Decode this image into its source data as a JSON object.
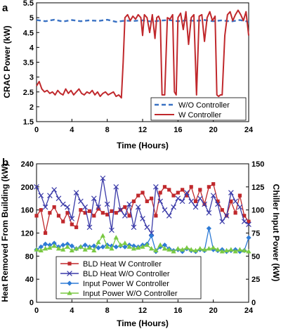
{
  "chart_data": [
    {
      "type": "line",
      "panel": "a",
      "xlabel": "Time (Hours)",
      "ylabel": "CRAC Power (kW)",
      "xlim": [
        0,
        24
      ],
      "ylim": [
        1.5,
        5.5
      ],
      "xticks": [
        0,
        4,
        8,
        12,
        16,
        20,
        24
      ],
      "yticks": [
        1.5,
        2,
        2.5,
        3,
        3.5,
        4,
        4.5,
        5,
        5.5
      ],
      "grid": false,
      "legend_position": "lower-right",
      "series": [
        {
          "name": "W/O Controller",
          "color": "#3a72c4",
          "style": "dashed",
          "x": [
            0,
            1,
            2,
            3,
            4,
            5,
            6,
            7,
            8,
            9,
            10,
            11,
            12,
            13,
            14,
            15,
            16,
            17,
            18,
            19,
            20,
            21,
            22,
            23,
            24
          ],
          "y": [
            4.92,
            4.88,
            4.93,
            4.87,
            4.92,
            4.88,
            4.91,
            4.89,
            4.93,
            4.86,
            4.9,
            4.89,
            4.91,
            4.87,
            4.9,
            4.92,
            4.88,
            4.91,
            4.89,
            4.92,
            4.88,
            4.91,
            4.87,
            4.92,
            4.86
          ]
        },
        {
          "name": "W Controller",
          "color": "#c0282c",
          "style": "solid",
          "x": [
            0,
            0.3,
            0.6,
            0.9,
            1.2,
            1.5,
            1.8,
            2.1,
            2.4,
            2.7,
            3.0,
            3.3,
            3.6,
            3.9,
            4.2,
            4.5,
            4.8,
            5.1,
            5.4,
            5.7,
            6.0,
            6.3,
            6.6,
            6.9,
            7.2,
            7.5,
            7.8,
            8.1,
            8.4,
            8.7,
            9.0,
            9.3,
            9.6,
            9.8,
            10.0,
            10.3,
            10.6,
            10.9,
            11.2,
            11.5,
            11.8,
            12.0,
            12.2,
            12.5,
            12.8,
            13.1,
            13.4,
            13.6,
            13.8,
            14.0,
            14.2,
            14.5,
            14.8,
            15.1,
            15.4,
            15.6,
            15.8,
            16.0,
            16.3,
            16.6,
            16.9,
            17.2,
            17.5,
            17.8,
            18.1,
            18.4,
            18.7,
            19.0,
            19.3,
            19.6,
            19.9,
            20.2,
            20.4,
            20.6,
            20.8,
            21.0,
            21.3,
            21.6,
            21.9,
            22.2,
            22.5,
            22.8,
            23.1,
            23.4,
            23.7,
            24.0
          ],
          "y": [
            2.7,
            2.85,
            2.6,
            2.5,
            2.55,
            2.45,
            2.5,
            2.4,
            2.55,
            2.45,
            2.4,
            2.6,
            2.45,
            2.55,
            2.4,
            2.5,
            2.6,
            2.45,
            2.4,
            2.5,
            2.45,
            2.55,
            2.4,
            2.5,
            2.35,
            2.45,
            2.5,
            2.4,
            2.45,
            2.5,
            2.35,
            2.4,
            2.3,
            3.5,
            5.0,
            5.1,
            4.9,
            5.05,
            4.95,
            5.1,
            5.0,
            4.4,
            5.1,
            5.0,
            4.5,
            5.1,
            4.3,
            5.0,
            5.05,
            4.9,
            2.4,
            2.4,
            5.0,
            4.95,
            5.1,
            2.5,
            2.4,
            5.0,
            5.15,
            4.6,
            5.2,
            4.1,
            5.0,
            5.1,
            2.4,
            5.05,
            5.1,
            4.2,
            5.0,
            5.2,
            4.9,
            5.05,
            2.4,
            2.35,
            2.4,
            2.4,
            4.4,
            5.1,
            5.2,
            4.9,
            5.1,
            5.25,
            5.1,
            4.9,
            5.2,
            4.4
          ]
        }
      ]
    },
    {
      "type": "line",
      "panel": "b",
      "xlabel": "Time (Hours)",
      "ylabel": "Heat Removed From Building (kW)",
      "y2label": "Chiller Input Power (kW)",
      "xlim": [
        0,
        24
      ],
      "ylim": [
        0,
        240
      ],
      "y2lim": [
        0,
        150
      ],
      "xticks": [
        0,
        4,
        8,
        12,
        16,
        20,
        24
      ],
      "yticks": [
        0,
        40,
        80,
        120,
        160,
        200,
        240
      ],
      "y2ticks": [
        0,
        25,
        50,
        75,
        100,
        125,
        150
      ],
      "grid": false,
      "legend_position": "bottom-center",
      "series": [
        {
          "name": "BLD Heat W Controller",
          "axis": "left",
          "color": "#c0282c",
          "marker": "square",
          "x": [
            0,
            0.5,
            1,
            1.5,
            2,
            2.5,
            3,
            3.5,
            4,
            4.5,
            5,
            5.5,
            6,
            6.5,
            7,
            7.5,
            8,
            8.5,
            9,
            9.5,
            10,
            10.5,
            11,
            11.5,
            12,
            12.5,
            13,
            13.5,
            14,
            14.5,
            15,
            15.5,
            16,
            16.5,
            17,
            17.5,
            18,
            18.5,
            19,
            19.5,
            20,
            20.5,
            21,
            21.5,
            22,
            22.5,
            23,
            23.5,
            24
          ],
          "y": [
            150,
            160,
            120,
            155,
            165,
            150,
            140,
            155,
            135,
            130,
            160,
            155,
            158,
            150,
            162,
            155,
            152,
            158,
            155,
            160,
            165,
            150,
            175,
            185,
            190,
            175,
            180,
            150,
            190,
            200,
            195,
            185,
            190,
            195,
            185,
            200,
            175,
            195,
            170,
            200,
            205,
            175,
            160,
            150,
            175,
            155,
            185,
            150,
            140
          ]
        },
        {
          "name": "BLD Heat W/O Controller",
          "axis": "left",
          "color": "#3a3aa8",
          "marker": "x",
          "x": [
            0,
            0.5,
            1,
            1.5,
            2,
            2.5,
            3,
            3.5,
            4,
            4.5,
            5,
            5.5,
            6,
            6.5,
            7,
            7.5,
            8,
            8.5,
            9,
            9.5,
            10,
            10.5,
            11,
            11.5,
            12,
            12.5,
            13,
            13.5,
            14,
            14.5,
            15,
            15.5,
            16,
            16.5,
            17,
            17.5,
            18,
            18.5,
            19,
            19.5,
            20,
            20.5,
            21,
            21.5,
            22,
            22.5,
            23,
            23.5,
            24
          ],
          "y": [
            200,
            185,
            165,
            185,
            195,
            180,
            170,
            165,
            145,
            190,
            175,
            165,
            130,
            180,
            165,
            215,
            170,
            125,
            200,
            160,
            150,
            170,
            130,
            165,
            145,
            130,
            120,
            200,
            175,
            160,
            150,
            165,
            180,
            175,
            190,
            175,
            165,
            180,
            170,
            155,
            185,
            170,
            140,
            150,
            190,
            175,
            165,
            140,
            135
          ]
        },
        {
          "name": "Input Power W Controller",
          "axis": "right",
          "color": "#2e7bd6",
          "marker": "diamond",
          "x": [
            0,
            0.5,
            1,
            1.5,
            2,
            2.5,
            3,
            3.5,
            4,
            4.5,
            5,
            5.5,
            6,
            6.5,
            7,
            7.5,
            8,
            8.5,
            9,
            9.5,
            10,
            10.5,
            11,
            11.5,
            12,
            12.5,
            13,
            13.5,
            14,
            14.5,
            15,
            15.5,
            16,
            16.5,
            17,
            17.5,
            18,
            18.5,
            19,
            19.5,
            20,
            20.5,
            21,
            21.5,
            22,
            22.5,
            23,
            23.5,
            24
          ],
          "y": [
            57,
            60,
            63,
            62,
            64,
            60,
            62,
            63,
            61,
            58,
            60,
            62,
            60,
            61,
            59,
            60,
            62,
            61,
            60,
            61,
            60,
            62,
            61,
            60,
            62,
            63,
            72,
            55,
            60,
            62,
            58,
            56,
            57,
            55,
            58,
            56,
            55,
            57,
            56,
            80,
            57,
            56,
            57,
            55,
            56,
            57,
            55,
            56,
            70
          ]
        },
        {
          "name": "Input  Power W/O Controller",
          "axis": "right",
          "color": "#7ac943",
          "marker": "triangle",
          "x": [
            0,
            0.5,
            1,
            1.5,
            2,
            2.5,
            3,
            3.5,
            4,
            4.5,
            5,
            5.5,
            6,
            6.5,
            7,
            7.5,
            8,
            8.5,
            9,
            9.5,
            10,
            10.5,
            11,
            11.5,
            12,
            12.5,
            13,
            13.5,
            14,
            14.5,
            15,
            15.5,
            16,
            16.5,
            17,
            17.5,
            18,
            18.5,
            19,
            19.5,
            20,
            20.5,
            21,
            21.5,
            22,
            22.5,
            23,
            23.5,
            24
          ],
          "y": [
            57,
            56,
            58,
            59,
            61,
            58,
            57,
            60,
            56,
            58,
            60,
            57,
            59,
            56,
            65,
            72,
            60,
            58,
            70,
            62,
            64,
            60,
            58,
            59,
            60,
            62,
            58,
            56,
            62,
            58,
            57,
            55,
            58,
            57,
            59,
            57,
            56,
            58,
            57,
            58,
            59,
            57,
            55,
            56,
            57,
            55,
            57,
            56,
            55
          ]
        }
      ]
    }
  ]
}
